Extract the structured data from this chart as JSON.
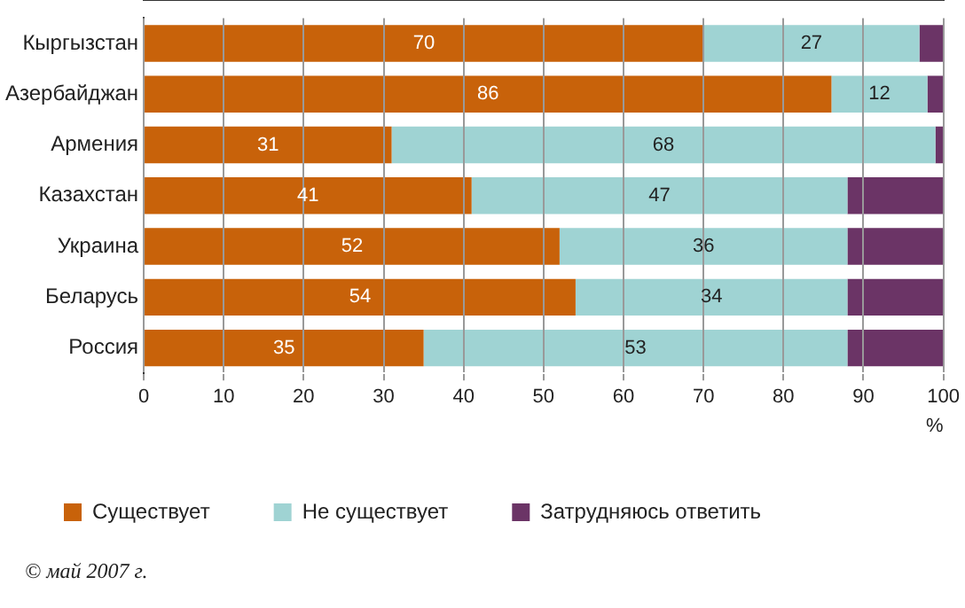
{
  "chart_data": {
    "type": "bar",
    "orientation": "horizontal",
    "stacked": true,
    "categories": [
      "Кыргызстан",
      "Азербайджан",
      "Армения",
      "Казахстан",
      "Украина",
      "Беларусь",
      "Россия"
    ],
    "series": [
      {
        "name": "Существует",
        "color": "#c8620a",
        "values": [
          70,
          86,
          31,
          41,
          52,
          54,
          35
        ],
        "value_labels": [
          "70",
          "86",
          "31",
          "41",
          "52",
          "54",
          "35"
        ]
      },
      {
        "name": "Не существует",
        "color": "#9fd3d3",
        "values": [
          27,
          12,
          68,
          47,
          36,
          34,
          53
        ],
        "value_labels": [
          "27",
          "12",
          "68",
          "47",
          "36",
          "34",
          "53"
        ]
      },
      {
        "name": "Затрудняюсь ответить",
        "color": "#6b3466",
        "values": [
          3,
          2,
          1,
          12,
          12,
          12,
          12
        ]
      }
    ],
    "xlim": [
      0,
      100
    ],
    "xticks": [
      0,
      10,
      20,
      30,
      40,
      50,
      60,
      70,
      80,
      90,
      100
    ],
    "xlabel": "%",
    "grid": "x",
    "legend": "bottom",
    "annotations": [
      "© май 2007 г."
    ]
  }
}
